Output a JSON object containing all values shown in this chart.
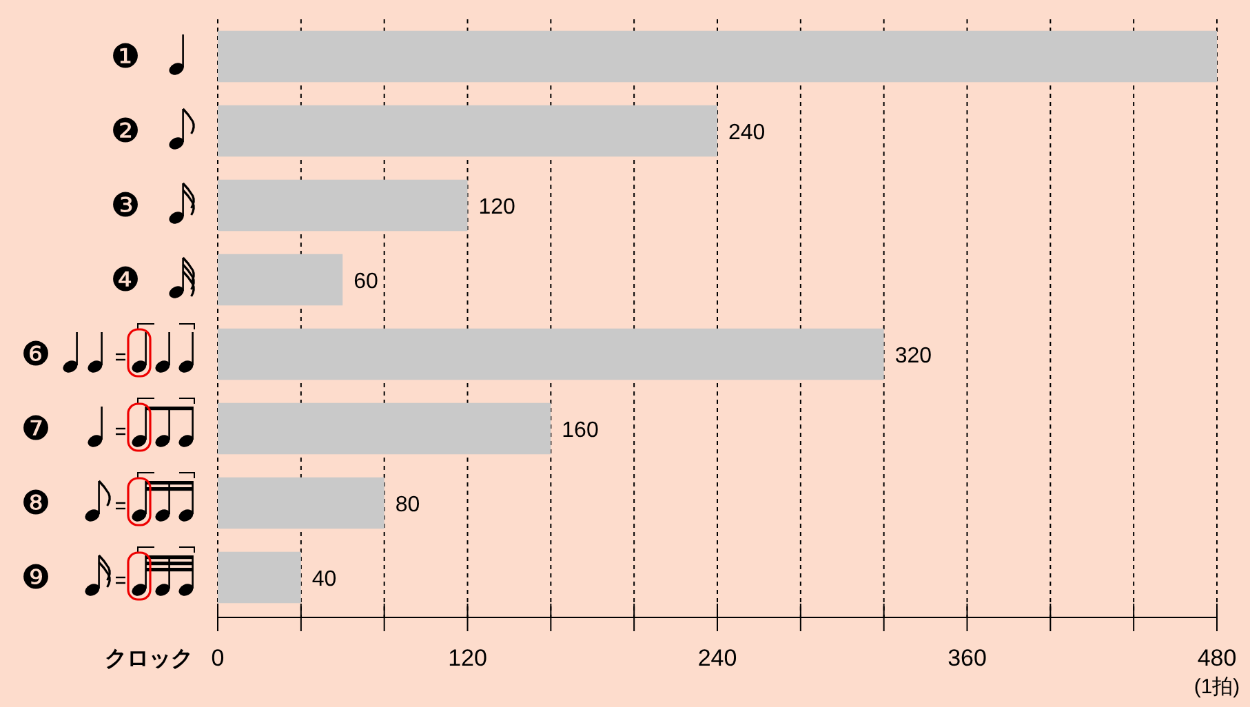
{
  "chart_data": {
    "type": "bar",
    "orientation": "horizontal",
    "xlabel": "クロック",
    "categories": [
      "❶",
      "❷",
      "❸",
      "❹",
      "❻",
      "❼",
      "❽",
      "❾"
    ],
    "values": [
      480,
      240,
      120,
      60,
      320,
      160,
      80,
      40
    ],
    "value_labels": [
      null,
      "240",
      "120",
      "60",
      "320",
      "160",
      "80",
      "40"
    ],
    "color": "#c9c9c9",
    "xlim": [
      0,
      480
    ],
    "xticks": [
      0,
      {
        "value": 40,
        "label": null
      },
      {
        "value": 80,
        "label": null
      },
      120,
      {
        "value": 160,
        "label": null
      },
      {
        "value": 200,
        "label": null
      },
      240,
      {
        "value": 280,
        "label": null
      },
      {
        "value": 320,
        "label": null
      },
      360,
      {
        "value": 400,
        "label": null
      },
      {
        "value": 440,
        "label": null
      },
      480
    ],
    "grid": "x",
    "annotations": [
      "(1拍)"
    ]
  }
}
